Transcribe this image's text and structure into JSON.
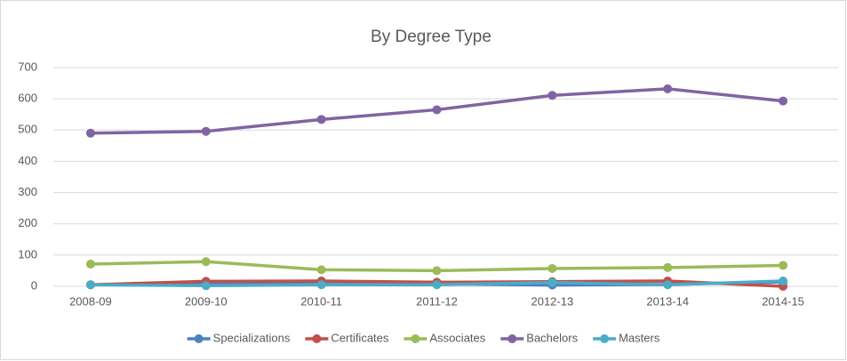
{
  "chart_data": {
    "type": "line",
    "title": "By Degree Type",
    "categories": [
      "2008-09",
      "2009-10",
      "2010-11",
      "2011-12",
      "2012-13",
      "2013-14",
      "2014-15"
    ],
    "series": [
      {
        "name": "Specializations",
        "color": "#4f81bd",
        "values": [
          5,
          9,
          9,
          8,
          4,
          6,
          14
        ]
      },
      {
        "name": "Certificates",
        "color": "#c0504d",
        "values": [
          5,
          16,
          17,
          13,
          15,
          17,
          0
        ]
      },
      {
        "name": "Associates",
        "color": "#9bbb59",
        "values": [
          71,
          79,
          53,
          50,
          57,
          60,
          67
        ]
      },
      {
        "name": "Bachelors",
        "color": "#8064a2",
        "values": [
          490,
          496,
          534,
          565,
          611,
          632,
          593
        ]
      },
      {
        "name": "Masters",
        "color": "#4bacc6",
        "values": [
          5,
          2,
          5,
          5,
          12,
          5,
          17
        ]
      }
    ],
    "ylim": [
      0,
      700
    ],
    "yticks": [
      0,
      100,
      200,
      300,
      400,
      500,
      600,
      700
    ],
    "grid": true,
    "legend": "bottom"
  }
}
